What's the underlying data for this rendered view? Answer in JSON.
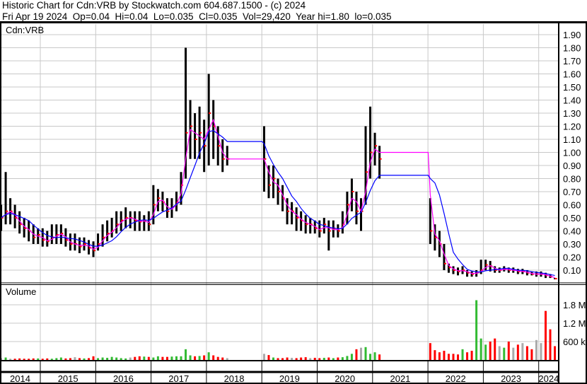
{
  "header": {
    "title": "Historic Chart for Cdn:VRB by Stockwatch.com 604.687.1500 - (c) 2024",
    "quote_line": "Fri Apr 19 2024  Op=0.04  Hi=0.04  Lo=0.035  Cl=0.035  Vol=29,420  Year hi=1.80  lo=0.035"
  },
  "chart_data": [
    {
      "type": "ohlc",
      "title": "Cdn:VRB",
      "ylim": [
        0,
        1.95
      ],
      "yticks": [
        "1.90",
        "1.80",
        "1.70",
        "1.60",
        "1.50",
        "1.40",
        "1.30",
        "1.20",
        "1.10",
        "1.00",
        "0.90",
        "0.80",
        "0.70",
        "0.60",
        "0.50",
        "0.40",
        "0.30",
        "0.20",
        "0.10"
      ],
      "xticks": [
        "2014",
        "2015",
        "2016",
        "2017",
        "2018",
        "2019",
        "2020",
        "2021",
        "2022",
        "2023",
        "2024"
      ],
      "grid": true,
      "colors": {
        "bar": "#000000",
        "close_tick": "#ff0000",
        "ma_short": "#ff00ff",
        "ma_long": "#0000ff"
      },
      "dates": [
        "2014-04",
        "2014-05",
        "2014-06",
        "2014-07",
        "2014-08",
        "2014-09",
        "2014-10",
        "2014-11",
        "2014-12",
        "2015-01",
        "2015-02",
        "2015-03",
        "2015-04",
        "2015-05",
        "2015-06",
        "2015-07",
        "2015-08",
        "2015-09",
        "2015-10",
        "2015-11",
        "2015-12",
        "2016-01",
        "2016-02",
        "2016-03",
        "2016-04",
        "2016-05",
        "2016-06",
        "2016-07",
        "2016-08",
        "2016-09",
        "2016-10",
        "2016-11",
        "2016-12",
        "2017-01",
        "2017-02",
        "2017-03",
        "2017-04",
        "2017-05",
        "2017-06",
        "2017-07",
        "2017-08",
        "2017-09",
        "2017-10",
        "2017-11",
        "2017-12",
        "2018-01",
        "2018-02",
        "2018-03",
        "2018-04",
        "2018-05",
        "2019-01",
        "2019-02",
        "2019-03",
        "2019-04",
        "2019-05",
        "2019-06",
        "2019-07",
        "2019-08",
        "2019-09",
        "2019-10",
        "2019-11",
        "2019-12",
        "2020-01",
        "2020-02",
        "2020-03",
        "2020-04",
        "2020-05",
        "2020-06",
        "2020-07",
        "2020-08",
        "2020-09",
        "2020-10",
        "2020-11",
        "2020-12",
        "2021-01",
        "2021-02",
        "2022-01",
        "2022-02",
        "2022-03",
        "2022-04",
        "2022-05",
        "2022-06",
        "2022-07",
        "2022-08",
        "2022-09",
        "2022-10",
        "2022-11",
        "2022-12",
        "2023-01",
        "2023-02",
        "2023-03",
        "2023-04",
        "2023-05",
        "2023-06",
        "2023-07",
        "2023-08",
        "2023-09",
        "2023-10",
        "2023-11",
        "2023-12",
        "2024-01",
        "2024-02",
        "2024-03",
        "2024-04"
      ],
      "high": [
        0.6,
        0.85,
        0.65,
        0.6,
        0.55,
        0.5,
        0.48,
        0.45,
        0.42,
        0.42,
        0.4,
        0.45,
        0.45,
        0.45,
        0.42,
        0.38,
        0.38,
        0.35,
        0.35,
        0.33,
        0.32,
        0.38,
        0.45,
        0.48,
        0.5,
        0.55,
        0.55,
        0.58,
        0.55,
        0.55,
        0.55,
        0.52,
        0.55,
        0.75,
        0.72,
        0.7,
        0.65,
        0.65,
        0.7,
        0.85,
        1.8,
        1.4,
        1.3,
        1.35,
        1.25,
        1.6,
        1.4,
        1.2,
        1.1,
        1.05,
        1.2,
        0.9,
        0.9,
        0.8,
        0.75,
        0.65,
        0.62,
        0.58,
        0.55,
        0.52,
        0.5,
        0.48,
        0.48,
        0.5,
        0.48,
        0.48,
        0.45,
        0.55,
        0.7,
        0.8,
        0.7,
        0.65,
        1.2,
        1.35,
        1.15,
        1.05,
        0.65,
        0.45,
        0.4,
        0.3,
        0.15,
        0.13,
        0.12,
        0.13,
        0.1,
        0.09,
        0.1,
        0.18,
        0.18,
        0.17,
        0.13,
        0.12,
        0.13,
        0.12,
        0.12,
        0.11,
        0.11,
        0.1,
        0.09,
        0.09,
        0.09,
        0.08,
        0.07,
        0.04
      ],
      "low": [
        0.4,
        0.45,
        0.45,
        0.42,
        0.38,
        0.35,
        0.32,
        0.3,
        0.3,
        0.28,
        0.28,
        0.3,
        0.3,
        0.3,
        0.28,
        0.25,
        0.25,
        0.23,
        0.25,
        0.22,
        0.2,
        0.25,
        0.28,
        0.32,
        0.35,
        0.38,
        0.4,
        0.42,
        0.42,
        0.4,
        0.4,
        0.4,
        0.4,
        0.45,
        0.55,
        0.55,
        0.5,
        0.5,
        0.55,
        0.6,
        0.8,
        0.95,
        0.95,
        0.95,
        0.85,
        0.9,
        0.95,
        0.9,
        0.85,
        0.9,
        0.7,
        0.65,
        0.65,
        0.6,
        0.55,
        0.45,
        0.45,
        0.4,
        0.4,
        0.38,
        0.38,
        0.38,
        0.35,
        0.38,
        0.25,
        0.35,
        0.35,
        0.38,
        0.45,
        0.55,
        0.45,
        0.4,
        0.6,
        0.8,
        0.9,
        0.8,
        0.3,
        0.25,
        0.2,
        0.1,
        0.08,
        0.07,
        0.06,
        0.07,
        0.05,
        0.05,
        0.05,
        0.07,
        0.1,
        0.09,
        0.08,
        0.08,
        0.09,
        0.08,
        0.08,
        0.07,
        0.07,
        0.06,
        0.06,
        0.05,
        0.05,
        0.04,
        0.04,
        0.03
      ],
      "close": [
        0.5,
        0.55,
        0.55,
        0.5,
        0.45,
        0.42,
        0.4,
        0.35,
        0.37,
        0.33,
        0.32,
        0.35,
        0.37,
        0.38,
        0.33,
        0.3,
        0.3,
        0.28,
        0.3,
        0.27,
        0.25,
        0.3,
        0.35,
        0.38,
        0.4,
        0.45,
        0.48,
        0.5,
        0.5,
        0.48,
        0.47,
        0.48,
        0.45,
        0.6,
        0.65,
        0.62,
        0.55,
        0.58,
        0.62,
        0.75,
        1.15,
        1.2,
        1.1,
        1.15,
        1.05,
        1.3,
        1.2,
        1.05,
        0.95,
        0.95,
        0.95,
        0.75,
        0.8,
        0.7,
        0.65,
        0.55,
        0.55,
        0.5,
        0.48,
        0.45,
        0.45,
        0.42,
        0.4,
        0.45,
        0.4,
        0.42,
        0.4,
        0.45,
        0.6,
        0.7,
        0.55,
        0.55,
        0.85,
        1.0,
        1.05,
        0.95,
        0.4,
        0.35,
        0.3,
        0.15,
        0.12,
        0.1,
        0.09,
        0.1,
        0.08,
        0.07,
        0.08,
        0.1,
        0.14,
        0.13,
        0.1,
        0.1,
        0.11,
        0.1,
        0.1,
        0.09,
        0.09,
        0.08,
        0.07,
        0.07,
        0.07,
        0.06,
        0.05,
        0.035
      ]
    },
    {
      "type": "bar",
      "title": "Volume",
      "yticks": [
        "1.8 M",
        "1.2 M",
        "600 k"
      ],
      "ytick_values": [
        1800000,
        1200000,
        600000
      ],
      "colors": {
        "up": "#33bb33",
        "down": "#ff0000",
        "flat": "#aaaaaa"
      },
      "volume": [
        60000,
        80000,
        40000,
        40000,
        50000,
        40000,
        40000,
        50000,
        50000,
        40000,
        50000,
        40000,
        60000,
        80000,
        50000,
        60000,
        90000,
        60000,
        50000,
        60000,
        120000,
        60000,
        80000,
        70000,
        100000,
        80000,
        60000,
        50000,
        80000,
        100000,
        120000,
        110000,
        100000,
        80000,
        120000,
        100000,
        100000,
        110000,
        120000,
        120000,
        350000,
        150000,
        120000,
        130000,
        150000,
        250000,
        150000,
        100000,
        80000,
        60000,
        200000,
        160000,
        80000,
        60000,
        60000,
        80000,
        70000,
        60000,
        80000,
        90000,
        60000,
        70000,
        60000,
        70000,
        80000,
        60000,
        80000,
        90000,
        130000,
        200000,
        350000,
        400000,
        420000,
        200000,
        250000,
        180000,
        550000,
        320000,
        250000,
        300000,
        200000,
        200000,
        180000,
        350000,
        250000,
        300000,
        1950000,
        700000,
        500000,
        600000,
        700000,
        450000,
        400000,
        600000,
        400000,
        500000,
        550000,
        450000,
        350000,
        650000,
        550000,
        1600000,
        1000000,
        450000
      ]
    }
  ]
}
